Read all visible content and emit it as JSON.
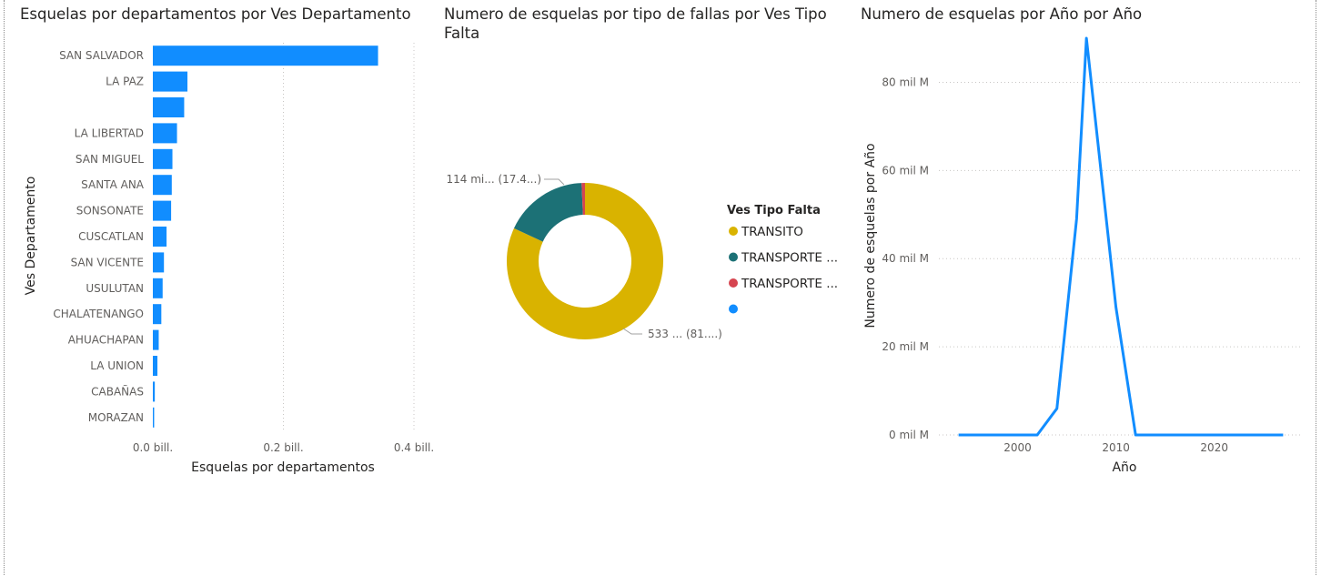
{
  "chart_data": [
    {
      "type": "bar",
      "orientation": "horizontal",
      "title": "Esquelas por departamentos por Ves Departamento",
      "xlabel": "Esquelas por departamentos",
      "ylabel": "Ves Departamento",
      "categories": [
        "SAN SALVADOR",
        "LA PAZ",
        "",
        "LA LIBERTAD",
        "SAN MIGUEL",
        "SANTA ANA",
        "SONSONATE",
        "CUSCATLAN",
        "SAN VICENTE",
        "USULUTAN",
        "CHALATENANGO",
        "AHUACHAPAN",
        "LA UNION",
        "CABAÑAS",
        "MORAZAN"
      ],
      "values": [
        0.345,
        0.053,
        0.048,
        0.037,
        0.03,
        0.029,
        0.028,
        0.021,
        0.017,
        0.015,
        0.013,
        0.009,
        0.007,
        0.003,
        0.002
      ],
      "unit": "bill.",
      "xlim": [
        0,
        0.4
      ],
      "xticks": [
        "0.0 bill.",
        "0.2 bill.",
        "0.4 bill."
      ],
      "grid": true,
      "color": "#118DFF"
    },
    {
      "type": "pie",
      "donut": true,
      "title": "Numero de esquelas por tipo de fallas por Ves Tipo\nFalta",
      "legend_title": "Ves Tipo Falta",
      "legend_position": "right",
      "slices": [
        {
          "label": "TRANSITO",
          "value": 81.9,
          "color": "#D9B300"
        },
        {
          "label": "TRANSPORTE ...",
          "value": 17.4,
          "color": "#1C7176"
        },
        {
          "label": "TRANSPORTE ...",
          "value": 0.7,
          "color": "#D64550"
        },
        {
          "label": "",
          "value": 0,
          "color": "#118DFF"
        }
      ],
      "data_labels": [
        {
          "text": "114 mi... (17.4...)"
        },
        {
          "text": "533 ... (81....)"
        }
      ]
    },
    {
      "type": "line",
      "title": "Numero de esquelas por Año por Año",
      "xlabel": "Año",
      "ylabel": "Numero de esquelas por Año",
      "x": [
        1994,
        2002,
        2004,
        2006,
        2007,
        2010,
        2012,
        2027
      ],
      "y": [
        0,
        0,
        6,
        49,
        90,
        29,
        0,
        0
      ],
      "xlim": [
        1992,
        2029
      ],
      "ylim": [
        0,
        90
      ],
      "xticks": [
        2000,
        2010,
        2020
      ],
      "yticks": [
        "0 mil M",
        "20 mil M",
        "40 mil M",
        "60 mil M",
        "80 mil M"
      ],
      "ytick_values": [
        0,
        20,
        40,
        60,
        80
      ],
      "grid": true,
      "color": "#118DFF"
    }
  ]
}
